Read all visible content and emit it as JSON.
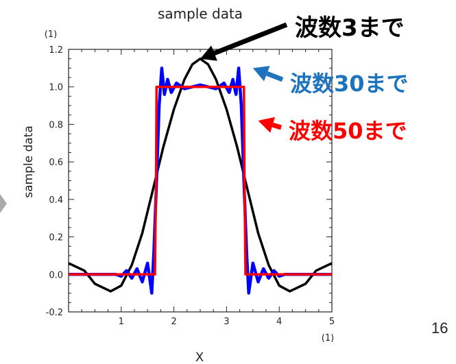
{
  "page_number": "16",
  "chart_data": {
    "type": "line",
    "title": "sample data",
    "xlabel": "X",
    "ylabel": "sample data",
    "x_scale_label": "(1)",
    "y_scale_label": "(1)",
    "xlim": [
      0,
      5
    ],
    "ylim": [
      -0.2,
      1.2
    ],
    "x_ticks": [
      1,
      2,
      3,
      4,
      5
    ],
    "y_ticks": [
      "-0.2",
      "0.0",
      "0.2",
      "0.4",
      "0.6",
      "0.8",
      "1.0",
      "1.2"
    ],
    "grid": false,
    "series": [
      {
        "name": "波数3まで",
        "color": "#000000",
        "points": [
          [
            0.0,
            0.06
          ],
          [
            0.3,
            0.02
          ],
          [
            0.5,
            -0.05
          ],
          [
            0.8,
            -0.09
          ],
          [
            1.0,
            -0.06
          ],
          [
            1.2,
            0.05
          ],
          [
            1.4,
            0.22
          ],
          [
            1.6,
            0.45
          ],
          [
            1.8,
            0.68
          ],
          [
            2.0,
            0.88
          ],
          [
            2.2,
            1.04
          ],
          [
            2.35,
            1.12
          ],
          [
            2.5,
            1.15
          ],
          [
            2.65,
            1.12
          ],
          [
            2.8,
            1.04
          ],
          [
            3.0,
            0.88
          ],
          [
            3.2,
            0.68
          ],
          [
            3.4,
            0.45
          ],
          [
            3.6,
            0.22
          ],
          [
            3.8,
            0.05
          ],
          [
            4.0,
            -0.06
          ],
          [
            4.2,
            -0.09
          ],
          [
            4.5,
            -0.05
          ],
          [
            4.7,
            0.02
          ],
          [
            5.0,
            0.06
          ]
        ]
      },
      {
        "name": "波数30まで",
        "color": "#0000ff",
        "points": [
          [
            0.0,
            0.0
          ],
          [
            0.9,
            0.0
          ],
          [
            1.0,
            -0.01
          ],
          [
            1.1,
            0.02
          ],
          [
            1.2,
            -0.02
          ],
          [
            1.3,
            0.03
          ],
          [
            1.4,
            -0.04
          ],
          [
            1.5,
            0.06
          ],
          [
            1.58,
            -0.1
          ],
          [
            1.62,
            0.12
          ],
          [
            1.67,
            0.5
          ],
          [
            1.72,
            0.9
          ],
          [
            1.77,
            1.1
          ],
          [
            1.82,
            0.96
          ],
          [
            1.88,
            1.04
          ],
          [
            1.95,
            0.97
          ],
          [
            2.05,
            1.02
          ],
          [
            2.2,
            0.99
          ],
          [
            2.5,
            1.01
          ],
          [
            2.8,
            0.99
          ],
          [
            2.95,
            1.02
          ],
          [
            3.05,
            0.97
          ],
          [
            3.12,
            1.04
          ],
          [
            3.18,
            0.96
          ],
          [
            3.23,
            1.1
          ],
          [
            3.28,
            0.9
          ],
          [
            3.33,
            0.5
          ],
          [
            3.38,
            0.12
          ],
          [
            3.42,
            -0.1
          ],
          [
            3.5,
            0.06
          ],
          [
            3.6,
            -0.04
          ],
          [
            3.7,
            0.03
          ],
          [
            3.8,
            -0.02
          ],
          [
            3.9,
            0.02
          ],
          [
            4.0,
            -0.01
          ],
          [
            4.1,
            0.0
          ],
          [
            5.0,
            0.0
          ]
        ]
      },
      {
        "name": "波数50まで",
        "color": "#ff0000",
        "points": [
          [
            0.0,
            0.0
          ],
          [
            1.64,
            0.0
          ],
          [
            1.66,
            0.5
          ],
          [
            1.67,
            1.0
          ],
          [
            3.33,
            1.0
          ],
          [
            3.34,
            0.5
          ],
          [
            3.36,
            0.0
          ],
          [
            5.0,
            0.0
          ]
        ]
      }
    ],
    "annotations": [
      {
        "text": "波数3まで",
        "color": "#000000",
        "points_to": [
          2.5,
          1.15
        ]
      },
      {
        "text": "波数30まで",
        "color": "#1e73be",
        "points_to": [
          3.5,
          1.1
        ]
      },
      {
        "text": "波数50まで",
        "color": "#ff0000",
        "points_to": [
          3.6,
          0.82
        ]
      }
    ]
  }
}
